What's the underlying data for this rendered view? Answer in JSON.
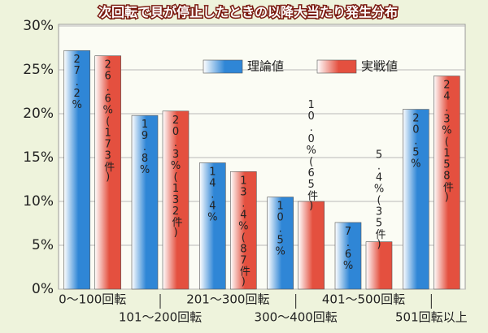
{
  "chart_data": {
    "type": "bar",
    "title": "次回転で貝が停止したときの以降大当たり発生分布",
    "categories": [
      "0〜100回転",
      "101〜200回転",
      "201〜300回転",
      "300〜400回転",
      "401〜500回転",
      "501回転以上"
    ],
    "series": [
      {
        "name": "理論値",
        "color": "#2f86d6",
        "values": [
          27.2,
          19.8,
          14.4,
          10.5,
          7.6,
          20.5
        ],
        "value_labels": [
          "27.2%",
          "19.8%",
          "14.4%",
          "10.5%",
          "7.6%",
          "20.5%"
        ]
      },
      {
        "name": "実戦値",
        "color": "#e4503f",
        "values": [
          26.6,
          20.3,
          13.4,
          10.0,
          5.4,
          24.3
        ],
        "value_labels": [
          "26.6%(173件)",
          "20.3%(132件)",
          "13.4%(87件)",
          "10.0%(65件)",
          "5.4%(35件)",
          "24.3%(158件)"
        ]
      }
    ],
    "ylim": [
      0,
      30
    ],
    "yticks": [
      {
        "value": 0,
        "label": "0%"
      },
      {
        "value": 5,
        "label": "5%"
      },
      {
        "value": 10,
        "label": "10%"
      },
      {
        "value": 15,
        "label": "15%"
      },
      {
        "value": 20,
        "label": "20%"
      },
      {
        "value": 25,
        "label": "25%"
      },
      {
        "value": 30,
        "label": "30%"
      }
    ],
    "grid": true
  }
}
